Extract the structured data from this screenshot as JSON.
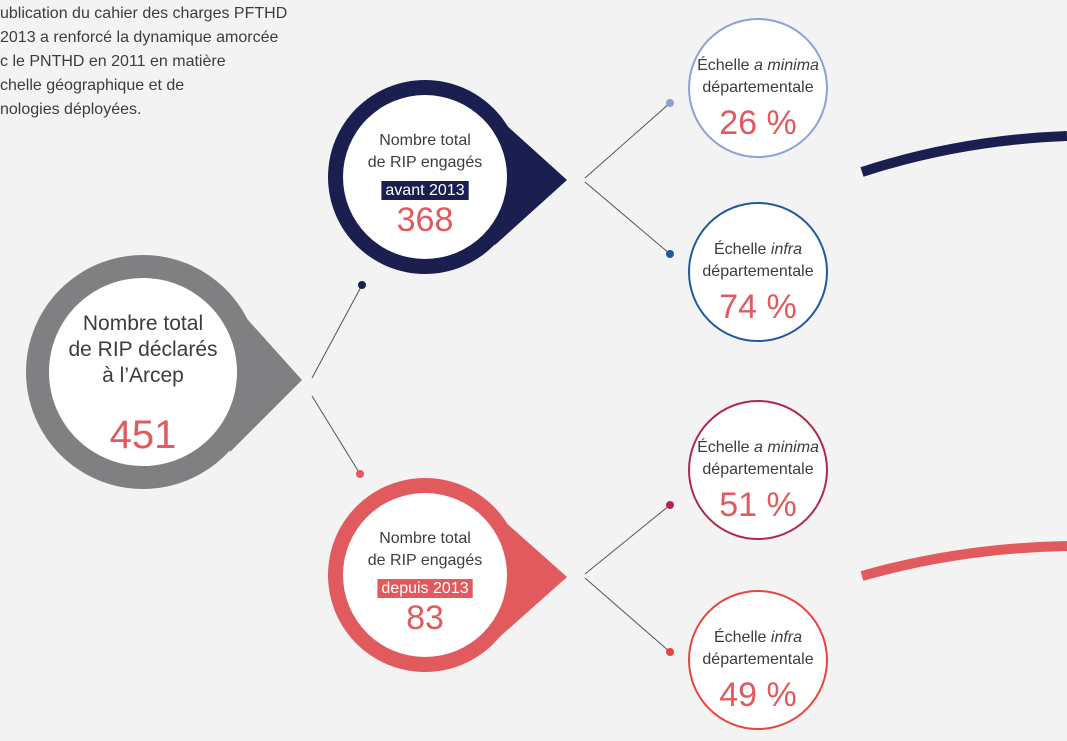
{
  "intro": [
    "ublication du cahier des charges PFTHD",
    "2013 a renforcé la dynamique amorcée",
    "c le PNTHD en 2011 en matière",
    "chelle géographique et de",
    "nologies déployées."
  ],
  "root": {
    "lines": [
      "Nombre total",
      "de RIP déclarés",
      "à l’Arcep"
    ],
    "value": "451"
  },
  "branches": [
    {
      "lines": [
        "Nombre total",
        "de RIP engagés"
      ],
      "highlight": "avant 2013",
      "value": "368",
      "leaves": [
        {
          "prefix": "Échelle",
          "italic": "a minima",
          "line2": "départementale",
          "value": "26 %"
        },
        {
          "prefix": "Échelle",
          "italic": "infra",
          "line2": "départementale",
          "value": "74 %"
        }
      ]
    },
    {
      "lines": [
        "Nombre total",
        "de RIP engagés"
      ],
      "highlight": "depuis 2013",
      "value": "83",
      "leaves": [
        {
          "prefix": "Échelle",
          "italic": "a minima",
          "line2": "départementale",
          "value": "51 %"
        },
        {
          "prefix": "Échelle",
          "italic": "infra",
          "line2": "départementale",
          "value": "49 %"
        }
      ]
    }
  ]
}
